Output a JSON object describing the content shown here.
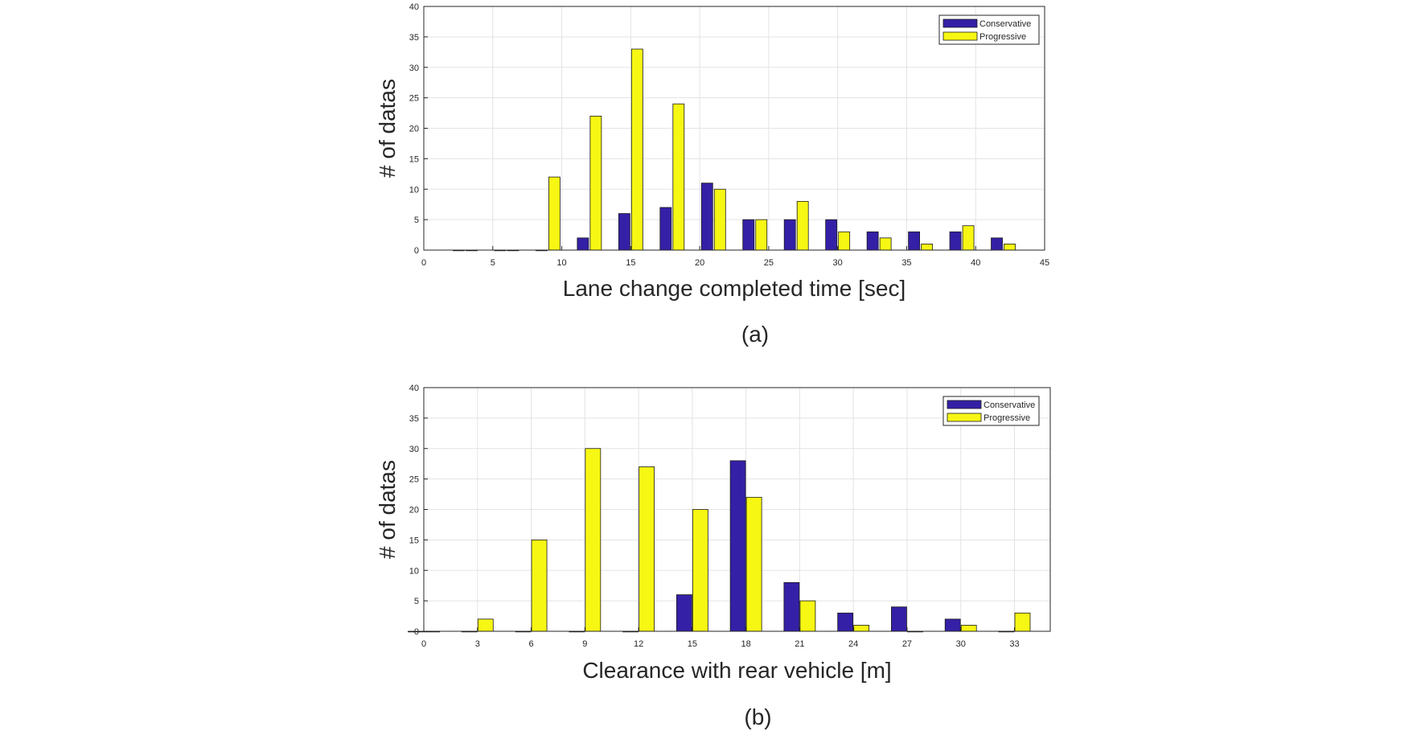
{
  "chart_data": [
    {
      "type": "bar",
      "caption": "(a)",
      "xlabel": "Lane change completed time [sec]",
      "ylabel": "# of datas",
      "xlim": [
        0,
        45
      ],
      "ylim": [
        0,
        40
      ],
      "xticks": [
        0,
        5,
        10,
        15,
        20,
        25,
        30,
        35,
        40,
        45
      ],
      "yticks": [
        0,
        5,
        10,
        15,
        20,
        25,
        30,
        35,
        40
      ],
      "grid": true,
      "legend_position": "top-right",
      "centers": [
        3,
        6,
        9,
        12,
        15,
        18,
        21,
        24,
        27,
        30,
        33,
        36,
        39,
        42
      ],
      "series": [
        {
          "name": "Conservative",
          "color": "#3420a6",
          "values": [
            0,
            0,
            0,
            2,
            6,
            7,
            11,
            5,
            5,
            5,
            3,
            3,
            3,
            2
          ]
        },
        {
          "name": "Progressive",
          "color": "#f7f714",
          "values": [
            0,
            0,
            12,
            22,
            33,
            24,
            10,
            5,
            8,
            3,
            2,
            1,
            4,
            1
          ]
        }
      ]
    },
    {
      "type": "bar",
      "caption": "(b)",
      "xlabel": "Clearance with rear vehicle [m]",
      "ylabel": "# of datas",
      "xlim": [
        0,
        35
      ],
      "ylim": [
        0,
        40
      ],
      "xticks": [
        0,
        3,
        6,
        9,
        12,
        15,
        18,
        21,
        24,
        27,
        30,
        33
      ],
      "yticks": [
        0,
        5,
        10,
        15,
        20,
        25,
        30,
        35,
        40
      ],
      "grid": true,
      "legend_position": "top-right",
      "centers": [
        0,
        3,
        6,
        9,
        12,
        15,
        18,
        21,
        24,
        27,
        30,
        33
      ],
      "series": [
        {
          "name": "Conservative",
          "color": "#3420a6",
          "values": [
            0,
            0,
            0,
            0,
            0,
            6,
            28,
            8,
            3,
            4,
            2,
            0
          ]
        },
        {
          "name": "Progressive",
          "color": "#f7f714",
          "values": [
            0,
            2,
            15,
            30,
            27,
            20,
            22,
            5,
            1,
            0,
            1,
            3
          ]
        }
      ]
    }
  ]
}
